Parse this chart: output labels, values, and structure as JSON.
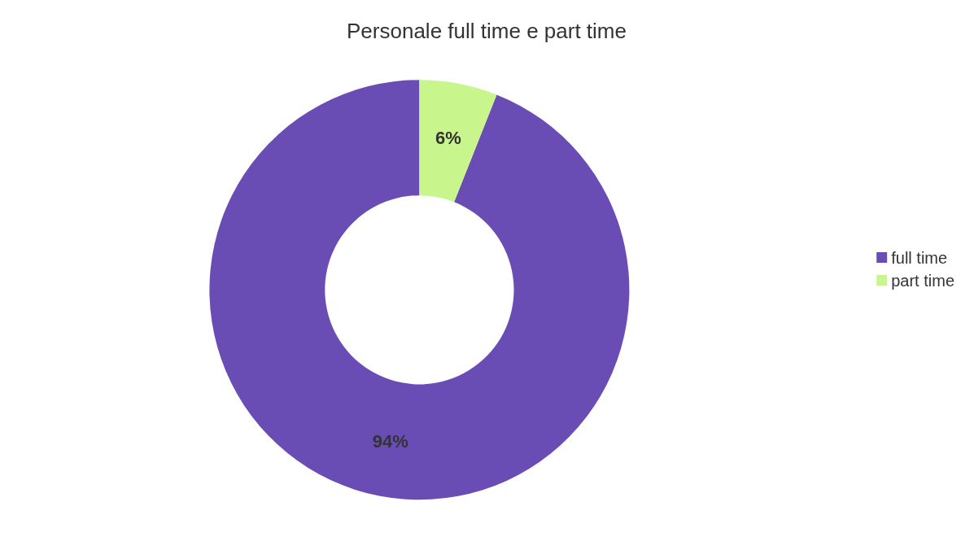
{
  "chart_data": {
    "type": "donut",
    "title": "Personale full time e part time",
    "categories": [
      "full time",
      "part time"
    ],
    "values": [
      94,
      6
    ],
    "value_labels": [
      "94%",
      "6%"
    ],
    "colors": [
      "#6a4db4",
      "#c8f58c"
    ],
    "legend": "right"
  }
}
